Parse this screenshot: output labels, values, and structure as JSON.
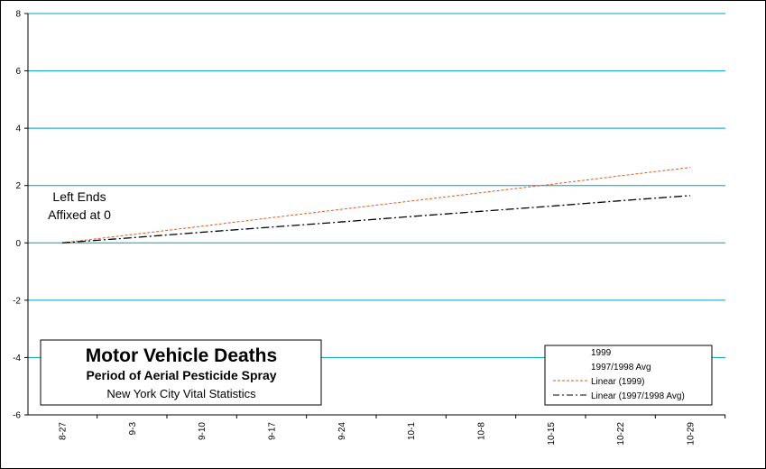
{
  "chart_data": {
    "type": "line",
    "title": "Motor Vehicle Deaths",
    "subtitle": "Period of Aerial Pesticide Spray",
    "source": "New York City Vital Statistics",
    "categories": [
      "8-27",
      "9-3",
      "9-10",
      "9-17",
      "9-24",
      "10-1",
      "10-8",
      "10-15",
      "10-22",
      "10-29"
    ],
    "ylim": [
      -6,
      8
    ],
    "yticks": [
      "8",
      "6",
      "4",
      "2",
      "0",
      "-2",
      "-4",
      "-6"
    ],
    "grid": true,
    "grid_color": "#00a0c0",
    "series": [
      {
        "name": "Linear (1999)",
        "color": "#e05a1a",
        "style": "dashed",
        "values": [
          0,
          0.29,
          0.58,
          0.88,
          1.17,
          1.46,
          1.75,
          2.04,
          2.34,
          2.63
        ]
      },
      {
        "name": "Linear (1997/1998 Avg)",
        "color": "#000000",
        "style": "dash-dot",
        "values": [
          0,
          0.18,
          0.37,
          0.55,
          0.73,
          0.92,
          1.1,
          1.28,
          1.47,
          1.65
        ]
      }
    ],
    "legend": {
      "position": "bottom-right",
      "entries": [
        "1999",
        "1997/1998 Avg",
        "Linear (1999)",
        "Linear (1997/1998 Avg)"
      ]
    },
    "annotation": {
      "line1": "Left Ends",
      "line2": "Affixed at 0"
    }
  }
}
